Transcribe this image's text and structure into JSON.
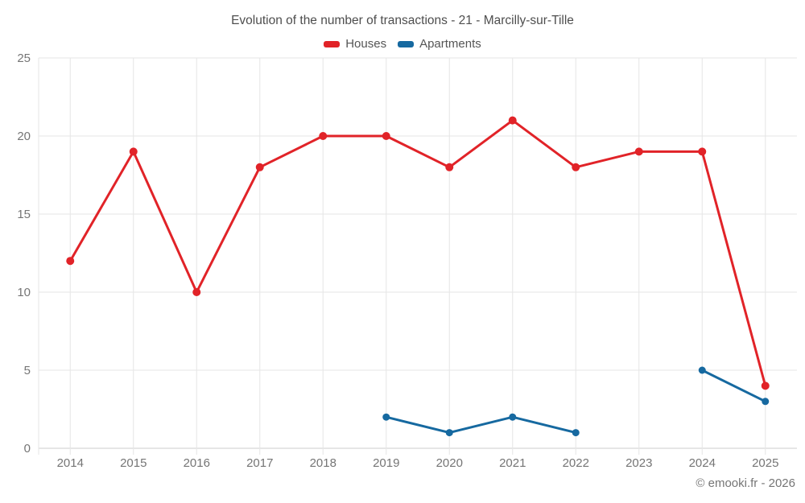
{
  "title": "Evolution of the number of transactions - 21 - Marcilly-sur-Tille",
  "footer": "© emooki.fr - 2026",
  "style": {
    "grid_color": "#e6e6e6",
    "axis_line_color": "#cccccc",
    "axis_text_color": "#757575",
    "title_color": "#4e4e4e",
    "background": "#ffffff"
  },
  "chart_data": {
    "type": "line",
    "title": "Evolution of the number of transactions - 21 - Marcilly-sur-Tille",
    "xlabel": "",
    "ylabel": "",
    "categories": [
      "2014",
      "2015",
      "2016",
      "2017",
      "2018",
      "2019",
      "2020",
      "2021",
      "2022",
      "2023",
      "2024",
      "2025"
    ],
    "series": [
      {
        "name": "Houses",
        "color": "#e12328",
        "marker_radius": 5,
        "values": [
          12,
          19,
          10,
          18,
          20,
          20,
          18,
          21,
          18,
          19,
          19,
          4
        ]
      },
      {
        "name": "Apartments",
        "color": "#1669a0",
        "marker_radius": 4.5,
        "values": [
          null,
          null,
          null,
          null,
          null,
          2,
          1,
          2,
          1,
          null,
          5,
          3
        ]
      }
    ],
    "ylim": [
      0,
      25
    ],
    "yticks": [
      0,
      5,
      10,
      15,
      20,
      25
    ],
    "grid": true,
    "legend_position": "top"
  }
}
